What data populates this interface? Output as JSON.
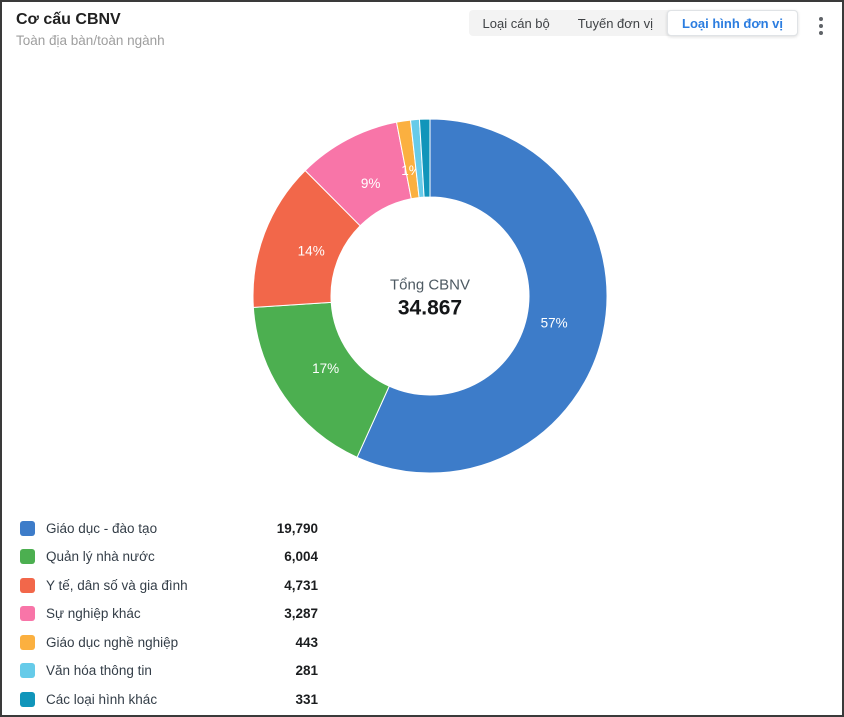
{
  "header": {
    "title": "Cơ cấu CBNV",
    "subtitle": "Toàn địa bàn/toàn ngành",
    "tabs": [
      {
        "label": "Loại cán bộ",
        "active": false
      },
      {
        "label": "Tuyến đơn vị",
        "active": false
      },
      {
        "label": "Loại hình đơn vị",
        "active": true
      }
    ],
    "active_tab_color": "#2b7de0",
    "menu_icon": "kebab-vertical-icon"
  },
  "chart_data": {
    "type": "pie",
    "subtype": "donut",
    "title": "Cơ cấu CBNV",
    "center_label": "Tổng CBNV",
    "center_value": "34.867",
    "total": 34867,
    "start_angle_deg": 0,
    "direction": "clockwise",
    "inner_radius_ratio": 0.56,
    "legend_position": "bottom-left",
    "slices": [
      {
        "label": "Giáo dục - đào tạo",
        "value": 19790,
        "display_value": "19,790",
        "percent_label": "57%",
        "color": "#3d7cc9"
      },
      {
        "label": "Quản lý nhà nước",
        "value": 6004,
        "display_value": "6,004",
        "percent_label": "17%",
        "color": "#4caf50"
      },
      {
        "label": "Y tế, dân số và gia đình",
        "value": 4731,
        "display_value": "4,731",
        "percent_label": "14%",
        "color": "#f2674a"
      },
      {
        "label": "Sự nghiệp khác",
        "value": 3287,
        "display_value": "3,287",
        "percent_label": "9%",
        "color": "#f875a8"
      },
      {
        "label": "Giáo dục nghề nghiệp",
        "value": 443,
        "display_value": "443",
        "percent_label": "1%",
        "color": "#fbb040"
      },
      {
        "label": "Văn hóa thông tin",
        "value": 281,
        "display_value": "281",
        "percent_label": "",
        "color": "#66cbe9"
      },
      {
        "label": "Các loại hình khác",
        "value": 331,
        "display_value": "331",
        "percent_label": "",
        "color": "#1095ba"
      }
    ]
  }
}
